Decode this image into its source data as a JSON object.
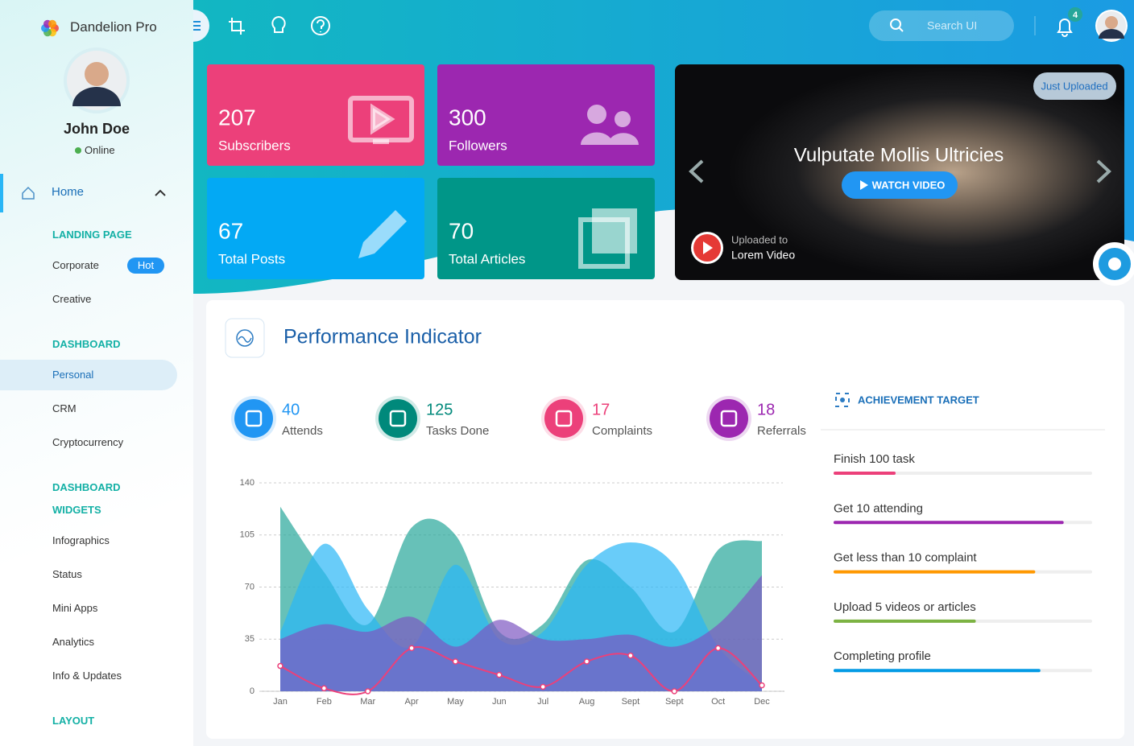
{
  "brand": "Dandelion Pro",
  "user": {
    "name": "John Doe",
    "status": "Online"
  },
  "menu": {
    "home": "Home",
    "sections": [
      {
        "heading": "LANDING PAGE",
        "items": [
          {
            "label": "Corporate",
            "badge": "Hot"
          },
          {
            "label": "Creative"
          }
        ]
      },
      {
        "heading": "DASHBOARD",
        "items": [
          {
            "label": "Personal",
            "active": true
          },
          {
            "label": "CRM"
          },
          {
            "label": "Cryptocurrency"
          }
        ]
      },
      {
        "heading": "DASHBOARD WIDGETS",
        "items": [
          {
            "label": "Infographics"
          },
          {
            "label": "Status"
          },
          {
            "label": "Mini Apps"
          },
          {
            "label": "Analytics"
          },
          {
            "label": "Info & Updates"
          }
        ]
      },
      {
        "heading": "LAYOUT",
        "items": []
      }
    ]
  },
  "topbar": {
    "search_placeholder": "Search UI",
    "notifications": 4
  },
  "cards": [
    {
      "value": 207,
      "label": "Subscribers",
      "color": "#ec407a"
    },
    {
      "value": 300,
      "label": "Followers",
      "color": "#9c27b0"
    },
    {
      "value": 67,
      "label": "Total Posts",
      "color": "#03a9f4"
    },
    {
      "value": 70,
      "label": "Total Articles",
      "color": "#009688"
    }
  ],
  "slider": {
    "badge": "Just Uploaded",
    "title": "Vulputate Mollis Ultricies",
    "button": "WATCH VIDEO",
    "caption": "Uploaded to",
    "channel": "Lorem Video"
  },
  "performance": {
    "title": "Performance Indicator",
    "counters": [
      {
        "value": 40,
        "label": "Attends",
        "color": "#2196f3"
      },
      {
        "value": 125,
        "label": "Tasks Done",
        "color": "#00897b"
      },
      {
        "value": 17,
        "label": "Complaints",
        "color": "#ec407a"
      },
      {
        "value": 18,
        "label": "Referrals",
        "color": "#9c27b0"
      }
    ]
  },
  "achievements": {
    "title": "ACHIEVEMENT TARGET",
    "max": 100,
    "items": [
      {
        "label": "Finish 100 task",
        "value": 24,
        "color": "#ec407a"
      },
      {
        "label": "Get 10 attending",
        "value": 89,
        "color": "#9c27b0"
      },
      {
        "label": "Get less than 10 complaint",
        "value": 78,
        "color": "#ff9800"
      },
      {
        "label": "Upload 5 videos or articles",
        "value": 55,
        "color": "#7cb342"
      },
      {
        "label": "Completing profile",
        "value": 80,
        "color": "#039be5"
      }
    ]
  },
  "chart_data": {
    "type": "area",
    "categories": [
      "Jan",
      "Feb",
      "Mar",
      "Apr",
      "May",
      "Jun",
      "Jul",
      "Aug",
      "Sept",
      "Sept",
      "Oct",
      "Dec"
    ],
    "ylim": [
      0,
      140
    ],
    "yticks": [
      0,
      35,
      70,
      105,
      140
    ],
    "grid": true,
    "series": [
      {
        "type": "area",
        "color": "#26a69a",
        "values": [
          124,
          80,
          45,
          110,
          105,
          40,
          45,
          88,
          70,
          40,
          95,
          101
        ]
      },
      {
        "type": "area",
        "color": "#29b6f6",
        "values": [
          40,
          99,
          55,
          30,
          85,
          35,
          40,
          85,
          100,
          85,
          30,
          5
        ]
      },
      {
        "type": "area",
        "color": "#7e57c2",
        "values": [
          35,
          45,
          40,
          50,
          30,
          48,
          35,
          35,
          38,
          30,
          45,
          78
        ]
      },
      {
        "type": "line",
        "color": "#ec407a",
        "values": [
          17,
          2,
          0,
          29,
          20,
          11,
          3,
          20,
          24,
          0,
          29,
          4
        ]
      }
    ]
  }
}
